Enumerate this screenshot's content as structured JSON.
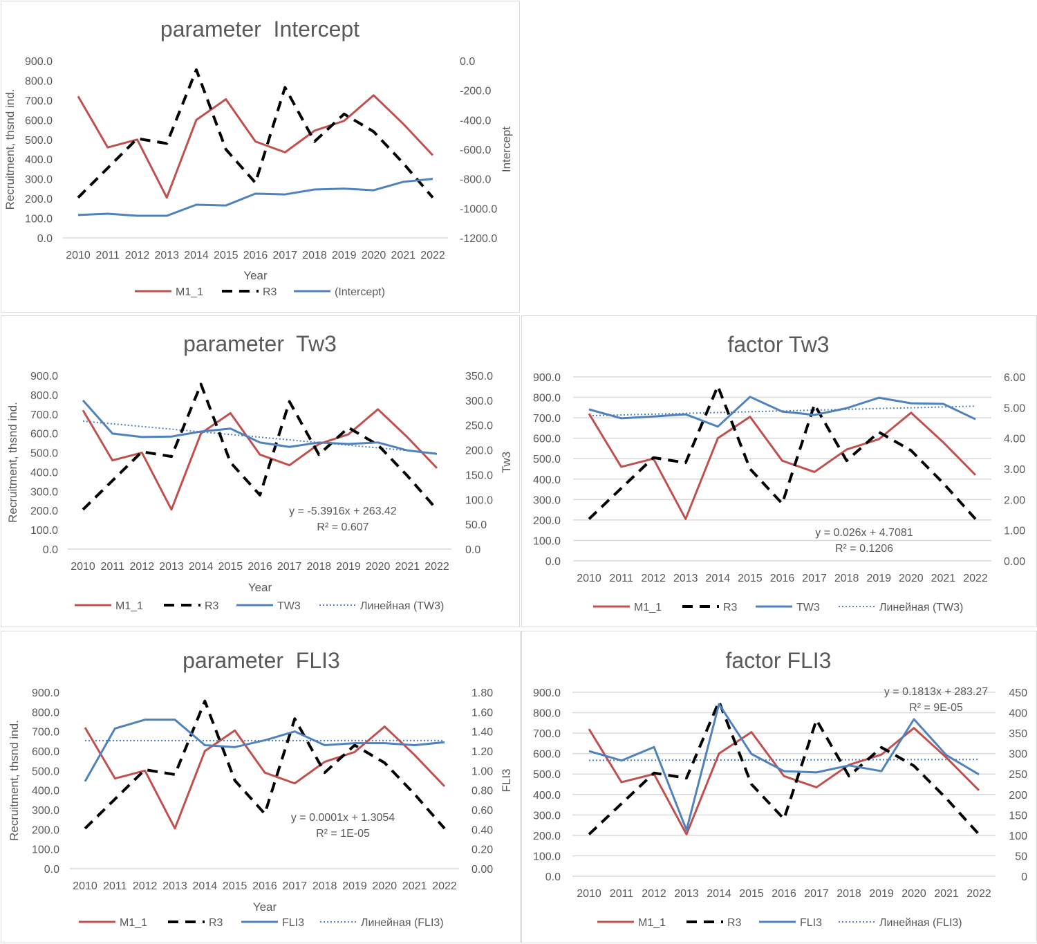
{
  "colors": {
    "M1_1": "#C0504D",
    "R3": "#000000",
    "third": "#4F81BD",
    "grid": "#D9D9D9",
    "text": "#595959"
  },
  "chart_data": [
    {
      "type": "line",
      "title": "parameter  Intercept",
      "xlabel": "Year",
      "ylabel": "Recruitment, thsnd ind.",
      "ylabel_right": "Intercept",
      "categories": [
        "2010",
        "2011",
        "2012",
        "2013",
        "2014",
        "2015",
        "2016",
        "2017",
        "2018",
        "2019",
        "2020",
        "2021",
        "2022"
      ],
      "ylim": [
        0,
        900
      ],
      "ylim_right": [
        -1200,
        0
      ],
      "yticks": [
        "0.0",
        "100.0",
        "200.0",
        "300.0",
        "400.0",
        "500.0",
        "600.0",
        "700.0",
        "800.0",
        "900.0"
      ],
      "yticks_right": [
        "-1200.0",
        "-1000.0",
        "-800.0",
        "-600.0",
        "-400.0",
        "-200.0",
        "0.0"
      ],
      "grid": false,
      "legend_position": "bottom",
      "series": [
        {
          "name": "M1_1",
          "axis": "left",
          "style": "solid",
          "values": [
            720,
            460,
            500,
            205,
            600,
            705,
            490,
            435,
            545,
            595,
            725,
            580,
            420
          ]
        },
        {
          "name": "R3",
          "axis": "left",
          "style": "dashed",
          "values": [
            205,
            355,
            505,
            480,
            855,
            450,
            280,
            765,
            490,
            630,
            540,
            380,
            205
          ]
        },
        {
          "name": "(Intercept)",
          "axis": "right",
          "style": "solid",
          "values": [
            -1045,
            -1036,
            -1050,
            -1050,
            -975,
            -980,
            -900,
            -905,
            -872,
            -866,
            -877,
            -820,
            -800
          ]
        }
      ]
    },
    {
      "type": "line",
      "title": "parameter  Tw3",
      "xlabel": "Year",
      "ylabel": "Recruitment, thsnd ind.",
      "ylabel_right": "Tw3",
      "categories": [
        "2010",
        "2011",
        "2012",
        "2013",
        "2014",
        "2015",
        "2016",
        "2017",
        "2018",
        "2019",
        "2020",
        "2021",
        "2022"
      ],
      "ylim": [
        0,
        900
      ],
      "ylim_right": [
        0,
        350
      ],
      "yticks": [
        "0.0",
        "100.0",
        "200.0",
        "300.0",
        "400.0",
        "500.0",
        "600.0",
        "700.0",
        "800.0",
        "900.0"
      ],
      "yticks_right": [
        "0.0",
        "50.0",
        "100.0",
        "150.0",
        "200.0",
        "250.0",
        "300.0",
        "350.0"
      ],
      "grid": false,
      "legend_position": "bottom",
      "series": [
        {
          "name": "M1_1",
          "axis": "left",
          "style": "solid",
          "values": [
            720,
            460,
            500,
            205,
            600,
            705,
            490,
            435,
            545,
            595,
            725,
            580,
            420
          ]
        },
        {
          "name": "R3",
          "axis": "left",
          "style": "dashed",
          "values": [
            205,
            355,
            505,
            480,
            855,
            450,
            280,
            765,
            490,
            630,
            540,
            380,
            205
          ]
        },
        {
          "name": "TW3",
          "axis": "right",
          "style": "solid",
          "values": [
            300,
            233,
            226,
            227,
            237,
            243,
            215,
            206,
            215,
            212,
            215,
            199,
            192
          ]
        }
      ],
      "trendline": {
        "name": "Линейная (TW3)",
        "slope": -5.3916,
        "intercept": 263.42,
        "equation": "y = -5.3916x + 263.42",
        "r2": "R² = 0.607"
      }
    },
    {
      "type": "line",
      "title": "factor Tw3",
      "xlabel": "",
      "ylabel": "",
      "ylabel_right": "",
      "categories": [
        "2010",
        "2011",
        "2012",
        "2013",
        "2014",
        "2015",
        "2016",
        "2017",
        "2018",
        "2019",
        "2020",
        "2021",
        "2022"
      ],
      "ylim": [
        0,
        900
      ],
      "ylim_right": [
        0,
        6
      ],
      "yticks": [
        "0.0",
        "100.0",
        "200.0",
        "300.0",
        "400.0",
        "500.0",
        "600.0",
        "700.0",
        "800.0",
        "900.0"
      ],
      "yticks_right": [
        "0.00",
        "1.00",
        "2.00",
        "3.00",
        "4.00",
        "5.00",
        "6.00"
      ],
      "grid": true,
      "legend_position": "bottom",
      "series": [
        {
          "name": "M1_1",
          "axis": "left",
          "style": "solid",
          "values": [
            720,
            460,
            500,
            205,
            600,
            705,
            490,
            435,
            545,
            595,
            725,
            580,
            420
          ]
        },
        {
          "name": "R3",
          "axis": "left",
          "style": "dashed",
          "values": [
            205,
            355,
            505,
            480,
            855,
            450,
            280,
            765,
            490,
            630,
            540,
            380,
            205
          ]
        },
        {
          "name": "TW3",
          "axis": "right",
          "style": "solid",
          "values": [
            4.94,
            4.65,
            4.71,
            4.78,
            4.38,
            5.35,
            4.87,
            4.76,
            4.98,
            5.32,
            5.14,
            5.12,
            4.62
          ]
        }
      ],
      "trendline": {
        "name": "Линейная (TW3)",
        "slope": 0.026,
        "intercept": 4.7081,
        "equation": "y = 0.026x + 4.7081",
        "r2": "R² = 0.1206"
      }
    },
    {
      "type": "line",
      "title": "parameter  FLI3",
      "xlabel": "Year",
      "ylabel": "Recruitment, thsnd ind.",
      "ylabel_right": "FLI3",
      "categories": [
        "2010",
        "2011",
        "2012",
        "2013",
        "2014",
        "2015",
        "2016",
        "2017",
        "2018",
        "2019",
        "2020",
        "2021",
        "2022"
      ],
      "ylim": [
        0,
        900
      ],
      "ylim_right": [
        0,
        1.8
      ],
      "yticks": [
        "0.0",
        "100.0",
        "200.0",
        "300.0",
        "400.0",
        "500.0",
        "600.0",
        "700.0",
        "800.0",
        "900.0"
      ],
      "yticks_right": [
        "0.00",
        "0.20",
        "0.40",
        "0.60",
        "0.80",
        "1.00",
        "1.20",
        "1.40",
        "1.60",
        "1.80"
      ],
      "grid": false,
      "legend_position": "bottom",
      "series": [
        {
          "name": "M1_1",
          "axis": "left",
          "style": "solid",
          "values": [
            720,
            460,
            500,
            205,
            600,
            705,
            490,
            435,
            545,
            595,
            725,
            580,
            420
          ]
        },
        {
          "name": "R3",
          "axis": "left",
          "style": "dashed",
          "values": [
            205,
            355,
            505,
            480,
            855,
            450,
            280,
            765,
            490,
            630,
            540,
            380,
            205
          ]
        },
        {
          "name": "FLI3",
          "axis": "right",
          "style": "solid",
          "values": [
            0.89,
            1.43,
            1.52,
            1.52,
            1.26,
            1.24,
            1.31,
            1.4,
            1.26,
            1.28,
            1.28,
            1.26,
            1.29
          ]
        }
      ],
      "trendline": {
        "name": "Линейная (FLI3)",
        "slope": 0.0001,
        "intercept": 1.3054,
        "equation": "y = 0.0001x + 1.3054",
        "r2": "R² = 1E-05"
      }
    },
    {
      "type": "line",
      "title": "factor FLI3",
      "xlabel": "",
      "ylabel": "",
      "ylabel_right": "",
      "categories": [
        "2010",
        "2011",
        "2012",
        "2013",
        "2014",
        "2015",
        "2016",
        "2017",
        "2018",
        "2019",
        "2020",
        "2021",
        "2022"
      ],
      "ylim": [
        0,
        900
      ],
      "ylim_right": [
        0,
        450
      ],
      "yticks": [
        "0.0",
        "100.0",
        "200.0",
        "300.0",
        "400.0",
        "500.0",
        "600.0",
        "700.0",
        "800.0",
        "900.0"
      ],
      "yticks_right": [
        "0",
        "50",
        "100",
        "150",
        "200",
        "250",
        "300",
        "350",
        "400",
        "450"
      ],
      "grid": true,
      "legend_position": "bottom",
      "series": [
        {
          "name": "M1_1",
          "axis": "left",
          "style": "solid",
          "values": [
            720,
            460,
            500,
            205,
            600,
            705,
            490,
            435,
            545,
            595,
            725,
            580,
            420
          ]
        },
        {
          "name": "R3",
          "axis": "left",
          "style": "dashed",
          "values": [
            205,
            355,
            505,
            480,
            855,
            450,
            280,
            765,
            490,
            630,
            540,
            380,
            205
          ]
        },
        {
          "name": "FLI3",
          "axis": "right",
          "style": "solid",
          "values": [
            306,
            283,
            316,
            113,
            421,
            299,
            257,
            254,
            271,
            257,
            384,
            296,
            249
          ]
        }
      ],
      "trendline": {
        "name": "Линейная (FLI3)",
        "slope": 0.1813,
        "intercept": 283.27,
        "equation": "y = 0.1813x + 283.27",
        "r2": "R² = 9E-05"
      }
    }
  ]
}
